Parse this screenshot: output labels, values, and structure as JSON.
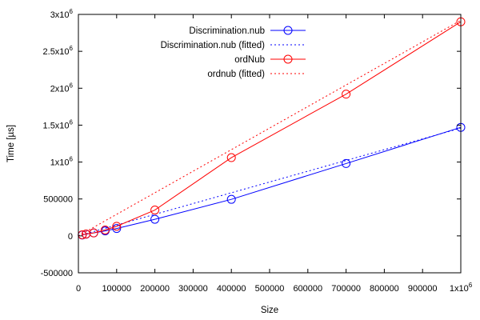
{
  "chart_data": {
    "type": "line",
    "xlabel": "Size",
    "ylabel": "Time [µs]",
    "xlim": [
      0,
      1000000
    ],
    "ylim": [
      -500000,
      3000000
    ],
    "grid": false,
    "legend_position": "top-center",
    "x_ticks": [
      {
        "value": 0,
        "label": "0"
      },
      {
        "value": 100000,
        "label": "100000"
      },
      {
        "value": 200000,
        "label": "200000"
      },
      {
        "value": 300000,
        "label": "300000"
      },
      {
        "value": 400000,
        "label": "400000"
      },
      {
        "value": 500000,
        "label": "500000"
      },
      {
        "value": 600000,
        "label": "600000"
      },
      {
        "value": 700000,
        "label": "700000"
      },
      {
        "value": 800000,
        "label": "800000"
      },
      {
        "value": 900000,
        "label": "900000"
      },
      {
        "value": 1000000,
        "label": "1x10",
        "exp": "6"
      }
    ],
    "y_ticks": [
      {
        "value": -500000,
        "label": "-500000"
      },
      {
        "value": 0,
        "label": "0"
      },
      {
        "value": 500000,
        "label": "500000"
      },
      {
        "value": 1000000,
        "label": "1x10",
        "exp": "6"
      },
      {
        "value": 1500000,
        "label": "1.5x10",
        "exp": "6"
      },
      {
        "value": 2000000,
        "label": "2x10",
        "exp": "6"
      },
      {
        "value": 2500000,
        "label": "2.5x10",
        "exp": "6"
      },
      {
        "value": 3000000,
        "label": "3x10",
        "exp": "6"
      }
    ],
    "series": [
      {
        "name": "Discrimination.nub",
        "color": "#0000ff",
        "style": "solid",
        "marker": "circle",
        "x": [
          10000,
          20000,
          40000,
          70000,
          100000,
          200000,
          400000,
          700000,
          1000000
        ],
        "y": [
          12000,
          23000,
          40000,
          68000,
          100000,
          225000,
          495000,
          980000,
          1470000
        ]
      },
      {
        "name": "Discrimination.nub (fitted)",
        "color": "#0000ff",
        "style": "dotted",
        "marker": "none",
        "x": [
          0,
          1000000
        ],
        "y": [
          0,
          1460000
        ]
      },
      {
        "name": "ordNub",
        "color": "#ff0000",
        "style": "solid",
        "marker": "circle",
        "x": [
          10000,
          20000,
          40000,
          70000,
          100000,
          200000,
          400000,
          700000,
          1000000
        ],
        "y": [
          15000,
          25000,
          40000,
          80000,
          130000,
          350000,
          1060000,
          1920000,
          2900000
        ]
      },
      {
        "name": "ordnub (fitted)",
        "color": "#ff0000",
        "style": "dotted",
        "marker": "none",
        "x": [
          0,
          1000000
        ],
        "y": [
          0,
          2920000
        ]
      }
    ]
  }
}
